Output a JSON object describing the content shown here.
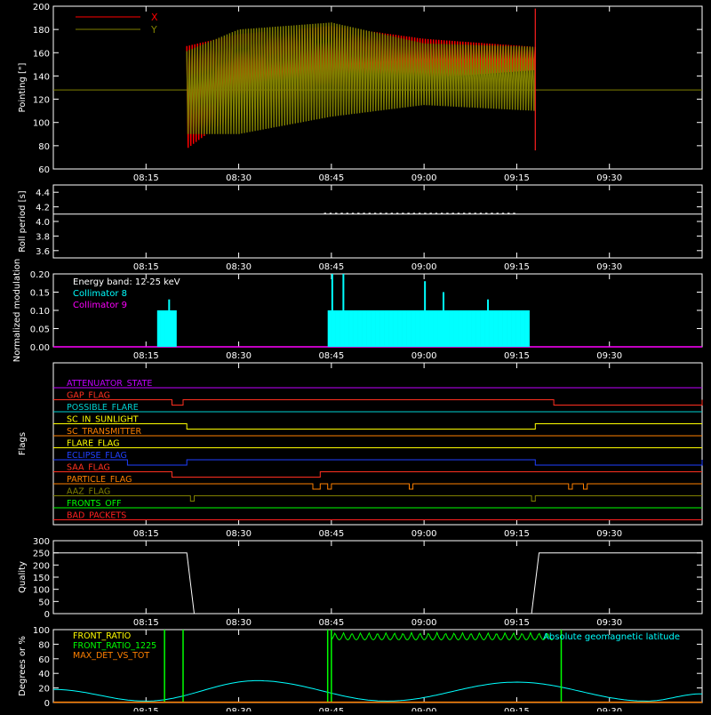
{
  "chart_data": [
    {
      "id": "pointing",
      "type": "line",
      "ylabel": "Pointing [\"]",
      "ylim": [
        60,
        200
      ],
      "yticks": [
        60,
        80,
        100,
        120,
        140,
        160,
        180,
        200
      ],
      "legend_placement": "top-left",
      "series": [
        {
          "name": "X",
          "color": "#ff0000",
          "envelope_hi": [
            [
              8.35,
              165
            ],
            [
              8.5,
              176
            ],
            [
              8.75,
              183
            ],
            [
              9.0,
              172
            ],
            [
              9.3,
              165
            ]
          ],
          "envelope_lo": [
            [
              8.35,
              75
            ],
            [
              8.5,
              110
            ],
            [
              8.75,
              120
            ],
            [
              9.0,
              138
            ],
            [
              9.3,
              145
            ]
          ]
        },
        {
          "name": "Y",
          "color": "#808000",
          "envelope_hi": [
            [
              8.35,
              160
            ],
            [
              8.5,
              180
            ],
            [
              8.75,
              186
            ],
            [
              9.0,
              168
            ],
            [
              9.3,
              165
            ]
          ],
          "envelope_lo": [
            [
              8.35,
              90
            ],
            [
              8.5,
              90
            ],
            [
              8.75,
              105
            ],
            [
              9.0,
              115
            ],
            [
              9.3,
              110
            ]
          ]
        }
      ],
      "baseline_value": 128
    },
    {
      "id": "roll",
      "type": "line",
      "ylabel": "Roll period [s]",
      "ylim": [
        3.5,
        4.5
      ],
      "yticks": [
        3.6,
        3.8,
        4.0,
        4.2,
        4.4
      ],
      "series": [
        {
          "name": "",
          "color": "#ffffff",
          "value": 4.1
        }
      ]
    },
    {
      "id": "modulation",
      "type": "bar",
      "ylabel": "Normalized modulation",
      "ylim": [
        0.0,
        0.2
      ],
      "yticks": [
        0.0,
        0.05,
        0.1,
        0.15,
        0.2
      ],
      "legend": {
        "title": "Energy band: 12-25 keV",
        "entries": [
          {
            "name": "Collimator 8",
            "color": "#00ffff"
          },
          {
            "name": "Collimator 9",
            "color": "#ff00ff"
          }
        ]
      },
      "segments": [
        [
          8.28,
          8.33,
          0.1
        ],
        [
          8.74,
          9.28,
          0.1
        ]
      ],
      "spikes": [
        [
          8.31,
          0.13
        ],
        [
          8.75,
          0.2
        ],
        [
          8.78,
          0.2
        ],
        [
          9.0,
          0.18
        ],
        [
          9.05,
          0.15
        ],
        [
          9.17,
          0.13
        ]
      ]
    },
    {
      "id": "flags",
      "type": "line",
      "ylabel": "Flags",
      "flags": [
        {
          "name": "ATTENUATOR_STATE",
          "color": "#c000ff",
          "steps": []
        },
        {
          "name": "GAP_FLAG",
          "color": "#ff3020",
          "steps": [
            [
              8.32,
              8.35
            ],
            [
              9.35,
              9.75
            ]
          ]
        },
        {
          "name": "POSSIBLE_FLARE",
          "color": "#00d0d0",
          "steps": []
        },
        {
          "name": "SC_IN_SUNLIGHT",
          "color": "#ffff00",
          "steps": [
            [
              8.36,
              9.3
            ]
          ]
        },
        {
          "name": "SC_TRANSMITTER",
          "color": "#ff8000",
          "steps": []
        },
        {
          "name": "FLARE_FLAG",
          "color": "#ffff00",
          "steps": []
        },
        {
          "name": "ECLIPSE_FLAG",
          "color": "#2040ff",
          "steps": [
            [
              8.2,
              8.36
            ],
            [
              9.3,
              9.75
            ]
          ]
        },
        {
          "name": "SAA_FLAG",
          "color": "#ff3020",
          "steps": [
            [
              8.32,
              8.72
            ]
          ]
        },
        {
          "name": "PARTICLE_FLAG",
          "color": "#ff8000",
          "steps": [
            [
              8.7,
              8.72
            ],
            [
              8.74,
              8.75
            ],
            [
              8.96,
              8.97
            ],
            [
              9.39,
              9.4
            ],
            [
              9.43,
              9.44
            ]
          ]
        },
        {
          "name": "AAZ_FLAG",
          "color": "#808000",
          "steps": [
            [
              8.37,
              8.38
            ],
            [
              9.29,
              9.3
            ]
          ]
        },
        {
          "name": "FRONTS_OFF",
          "color": "#00ff00",
          "steps": []
        },
        {
          "name": "BAD_PACKETS",
          "color": "#ff2020",
          "steps": []
        }
      ]
    },
    {
      "id": "quality",
      "type": "line",
      "ylabel": "Quality",
      "ylim": [
        0,
        300
      ],
      "yticks": [
        0,
        50,
        100,
        150,
        200,
        250,
        300
      ],
      "series": [
        {
          "name": "",
          "color": "#ffffff",
          "points": [
            [
              8.0,
              250
            ],
            [
              8.36,
              250
            ],
            [
              8.38,
              0
            ],
            [
              9.29,
              0
            ],
            [
              9.31,
              250
            ],
            [
              9.75,
              250
            ]
          ]
        }
      ]
    },
    {
      "id": "geomag",
      "type": "line",
      "ylabel": "Degrees or %",
      "ylim": [
        0,
        100
      ],
      "yticks": [
        0,
        20,
        40,
        60,
        80,
        100
      ],
      "legend": {
        "entries": [
          {
            "name": "FRONT_RATIO",
            "color": "#ffff00"
          },
          {
            "name": "FRONT_RATIO_1225",
            "color": "#00ff00"
          },
          {
            "name": "MAX_DET_VS_TOT",
            "color": "#ff8000"
          }
        ]
      },
      "annotation": {
        "text": "Absolute geomagnetic latitude",
        "color": "#00ffff"
      },
      "series": [
        {
          "name": "",
          "color": "#00ffff",
          "points": [
            [
              8.0,
              18
            ],
            [
              8.25,
              2
            ],
            [
              8.55,
              30
            ],
            [
              8.9,
              2
            ],
            [
              9.25,
              28
            ],
            [
              9.6,
              2
            ],
            [
              9.75,
              12
            ]
          ]
        },
        {
          "name": "",
          "color": "#00ff00",
          "verticals": [
            8.3,
            8.35,
            8.74,
            8.75,
            9.37
          ]
        }
      ]
    }
  ],
  "x_axis": {
    "ticks": [
      "08:15",
      "08:30",
      "08:45",
      "09:00",
      "09:15",
      "09:30"
    ],
    "tick_values": [
      8.25,
      8.5,
      8.75,
      9.0,
      9.25,
      9.5
    ],
    "xlim": [
      8.0,
      9.75
    ]
  }
}
